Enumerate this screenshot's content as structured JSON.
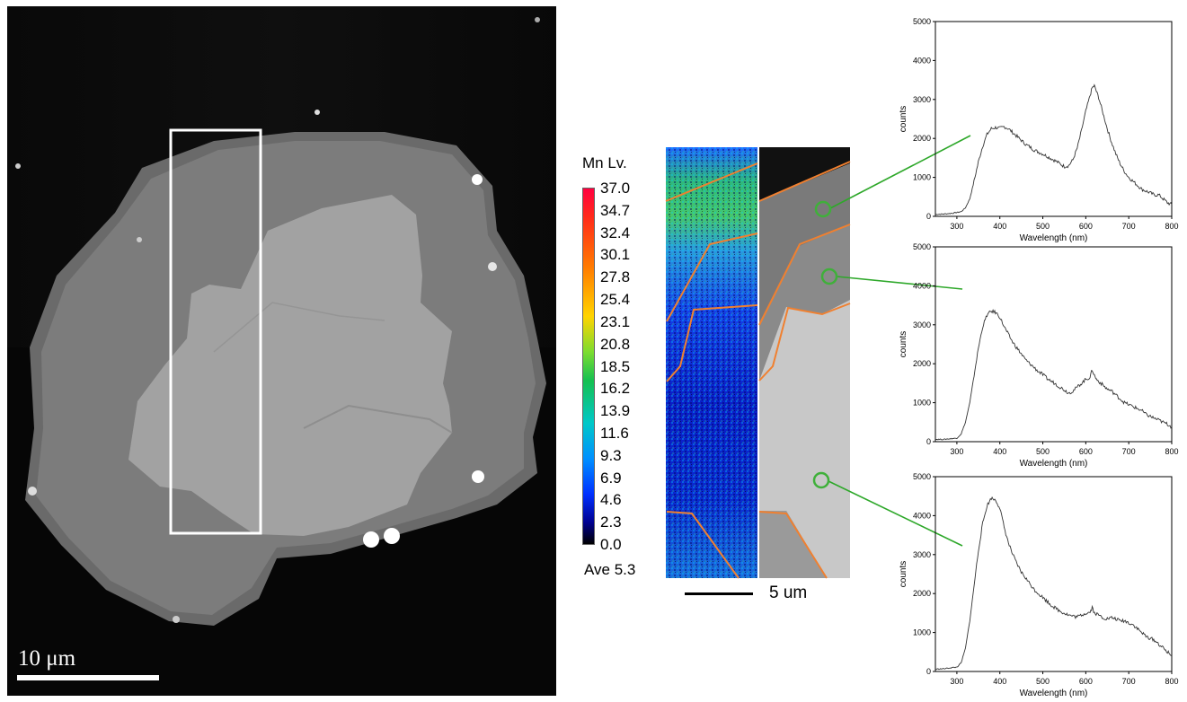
{
  "micrograph": {
    "scale_label": "10 μm"
  },
  "element_map": {
    "colorbar_title": "Mn  Lv.",
    "colorbar_ticks": [
      "37.0",
      "34.7",
      "32.4",
      "30.1",
      "27.8",
      "25.4",
      "23.1",
      "20.8",
      "18.5",
      "16.2",
      "13.9",
      "11.6",
      "9.3",
      "6.9",
      "4.6",
      "2.3",
      "0.0"
    ],
    "average_label": "Ave 5.3",
    "scale_label": "5 um"
  },
  "colors": {
    "boundary_lines": "#f08030",
    "marker_circles": "#3fb03a",
    "leader_lines": "#2ea82a",
    "box_outline": "#ffffff"
  },
  "chart_data": [
    {
      "type": "line",
      "xlabel": "Wavelength (nm)",
      "ylabel": "counts",
      "xlim": [
        250,
        800
      ],
      "ylim": [
        0,
        5000
      ],
      "xticks": [
        300,
        400,
        500,
        600,
        700,
        800
      ],
      "yticks": [
        0,
        1000,
        2000,
        3000,
        4000,
        5000
      ],
      "x": [
        250,
        270,
        290,
        310,
        320,
        330,
        340,
        350,
        360,
        370,
        380,
        390,
        400,
        410,
        420,
        430,
        440,
        450,
        460,
        470,
        480,
        490,
        500,
        510,
        520,
        530,
        540,
        550,
        560,
        570,
        580,
        590,
        600,
        610,
        615,
        620,
        625,
        630,
        640,
        650,
        660,
        670,
        680,
        690,
        700,
        710,
        720,
        730,
        740,
        750,
        760,
        770,
        780,
        790,
        800
      ],
      "y": [
        50,
        60,
        80,
        120,
        220,
        450,
        900,
        1400,
        1800,
        2100,
        2250,
        2280,
        2260,
        2300,
        2250,
        2150,
        2050,
        1950,
        1850,
        1780,
        1700,
        1650,
        1600,
        1540,
        1480,
        1420,
        1350,
        1280,
        1300,
        1450,
        1750,
        2200,
        2700,
        3100,
        3300,
        3350,
        3200,
        3050,
        2650,
        2250,
        1900,
        1600,
        1350,
        1150,
        1000,
        900,
        800,
        700,
        650,
        600,
        550,
        550,
        450,
        350,
        300
      ]
    },
    {
      "type": "line",
      "xlabel": "Wavelength (nm)",
      "ylabel": "counts",
      "xlim": [
        250,
        800
      ],
      "ylim": [
        0,
        5000
      ],
      "xticks": [
        300,
        400,
        500,
        600,
        700,
        800
      ],
      "yticks": [
        0,
        1000,
        2000,
        3000,
        4000,
        5000
      ],
      "x": [
        250,
        270,
        290,
        300,
        310,
        320,
        330,
        340,
        350,
        360,
        370,
        380,
        390,
        400,
        410,
        420,
        430,
        440,
        450,
        460,
        470,
        480,
        490,
        500,
        510,
        520,
        530,
        540,
        550,
        560,
        570,
        580,
        590,
        600,
        610,
        615,
        620,
        625,
        630,
        640,
        650,
        660,
        670,
        680,
        690,
        700,
        710,
        720,
        730,
        740,
        750,
        760,
        770,
        780,
        790,
        800
      ],
      "y": [
        60,
        60,
        80,
        90,
        200,
        500,
        1000,
        1700,
        2400,
        2950,
        3250,
        3350,
        3320,
        3200,
        2950,
        2750,
        2550,
        2400,
        2250,
        2100,
        2000,
        1900,
        1800,
        1720,
        1620,
        1550,
        1480,
        1400,
        1330,
        1250,
        1300,
        1400,
        1500,
        1600,
        1650,
        1850,
        1700,
        1600,
        1550,
        1450,
        1350,
        1300,
        1200,
        1100,
        1000,
        950,
        900,
        850,
        800,
        700,
        650,
        600,
        550,
        500,
        450,
        380
      ]
    },
    {
      "type": "line",
      "xlabel": "Wavelength (nm)",
      "ylabel": "counts",
      "xlim": [
        250,
        800
      ],
      "ylim": [
        0,
        5000
      ],
      "xticks": [
        300,
        400,
        500,
        600,
        700,
        800
      ],
      "yticks": [
        0,
        1000,
        2000,
        3000,
        4000,
        5000
      ],
      "x": [
        250,
        270,
        290,
        300,
        310,
        320,
        330,
        340,
        350,
        360,
        370,
        380,
        390,
        400,
        410,
        420,
        430,
        440,
        450,
        460,
        470,
        480,
        490,
        500,
        510,
        520,
        530,
        540,
        550,
        560,
        570,
        580,
        590,
        600,
        610,
        615,
        620,
        630,
        640,
        650,
        660,
        670,
        680,
        690,
        700,
        710,
        720,
        730,
        740,
        750,
        760,
        770,
        780,
        790,
        800
      ],
      "y": [
        60,
        70,
        100,
        110,
        220,
        600,
        1300,
        2200,
        3100,
        3800,
        4250,
        4450,
        4400,
        4200,
        3700,
        3300,
        3000,
        2750,
        2550,
        2400,
        2250,
        2100,
        2000,
        1900,
        1800,
        1700,
        1620,
        1550,
        1500,
        1450,
        1420,
        1400,
        1450,
        1500,
        1520,
        1650,
        1500,
        1450,
        1380,
        1350,
        1380,
        1350,
        1300,
        1300,
        1250,
        1200,
        1100,
        1000,
        900,
        850,
        800,
        700,
        600,
        500,
        400
      ]
    }
  ]
}
